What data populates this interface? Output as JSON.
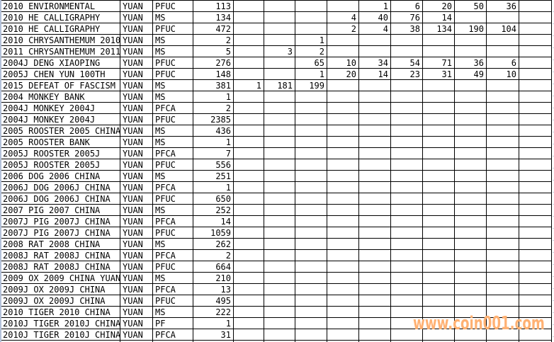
{
  "colors": {
    "grid_line": "#000000",
    "background": "#ffffff",
    "edge_strip": "#b4c2da",
    "faint_gridline": "#ccd5e4",
    "watermark": "#ffb173"
  },
  "watermark": {
    "text": "www.coin001.com"
  },
  "table": {
    "columns": [
      "name",
      "unit",
      "grade",
      "count",
      "c1",
      "c2",
      "c3",
      "c4",
      "c5",
      "c6",
      "c7",
      "c8",
      "c9",
      "c10"
    ],
    "rows": [
      {
        "name": "2010 ENVIRONMENTAL",
        "unit": "YUAN",
        "grade": "PFUC",
        "count": "113",
        "values": [
          "",
          "",
          "",
          "",
          "1",
          "6",
          "20",
          "50",
          "36",
          ""
        ]
      },
      {
        "name": "2010 HE CALLIGRAPHY",
        "unit": "YUAN",
        "grade": "MS",
        "count": "134",
        "values": [
          "",
          "",
          "",
          "4",
          "40",
          "76",
          "14",
          "",
          "",
          ""
        ]
      },
      {
        "name": "2010 HE CALLIGRAPHY",
        "unit": "YUAN",
        "grade": "PFUC",
        "count": "472",
        "values": [
          "",
          "",
          "",
          "2",
          "4",
          "38",
          "134",
          "190",
          "104",
          ""
        ]
      },
      {
        "name": "2010 CHRYSANTHEMUM 2010",
        "unit": "YUAN",
        "grade": "MS",
        "count": "2",
        "values": [
          "",
          "",
          "1",
          "",
          "",
          "",
          "",
          "",
          "",
          ""
        ]
      },
      {
        "name": "2011 CHRYSANTHEMUM 2011",
        "unit": "YUAN",
        "grade": "MS",
        "count": "5",
        "values": [
          "",
          "3",
          "2",
          "",
          "",
          "",
          "",
          "",
          "",
          ""
        ]
      },
      {
        "name": "2004J DENG XIAOPING",
        "unit": "YUAN",
        "grade": "PFUC",
        "count": "276",
        "values": [
          "",
          "",
          "65",
          "10",
          "34",
          "54",
          "71",
          "36",
          "6",
          ""
        ]
      },
      {
        "name": "2005J CHEN YUN 100TH",
        "unit": "YUAN",
        "grade": "PFUC",
        "count": "148",
        "values": [
          "",
          "",
          "1",
          "20",
          "14",
          "23",
          "31",
          "49",
          "10",
          ""
        ]
      },
      {
        "name": "2015 DEFEAT OF FASCISM",
        "unit": "YUAN",
        "grade": "MS",
        "count": "381",
        "values": [
          "1",
          "181",
          "199",
          "",
          "",
          "",
          "",
          "",
          "",
          ""
        ]
      },
      {
        "name": "2004 MONKEY BANK",
        "unit": "YUAN",
        "grade": "MS",
        "count": "1",
        "values": [
          "",
          "",
          "",
          "",
          "",
          "",
          "",
          "",
          "",
          ""
        ]
      },
      {
        "name": "2004J MONKEY 2004J",
        "unit": "YUAN",
        "grade": "PFCA",
        "count": "2",
        "values": [
          "",
          "",
          "",
          "",
          "",
          "",
          "",
          "",
          "",
          ""
        ]
      },
      {
        "name": "2004J MONKEY 2004J",
        "unit": "YUAN",
        "grade": "PFUC",
        "count": "2385",
        "values": [
          "",
          "",
          "",
          "",
          "",
          "",
          "",
          "",
          "",
          ""
        ]
      },
      {
        "name": "2005 ROOSTER 2005 CHINA",
        "unit": "YUAN",
        "grade": "MS",
        "count": "436",
        "values": [
          "",
          "",
          "",
          "",
          "",
          "",
          "",
          "",
          "",
          ""
        ]
      },
      {
        "name": "2005 ROOSTER BANK",
        "unit": "YUAN",
        "grade": "MS",
        "count": "1",
        "values": [
          "",
          "",
          "",
          "",
          "",
          "",
          "",
          "",
          "",
          ""
        ]
      },
      {
        "name": "2005J ROOSTER 2005J",
        "unit": "YUAN",
        "grade": "PFCA",
        "count": "7",
        "values": [
          "",
          "",
          "",
          "",
          "",
          "",
          "",
          "",
          "",
          ""
        ]
      },
      {
        "name": "2005J ROOSTER 2005J",
        "unit": "YUAN",
        "grade": "PFUC",
        "count": "556",
        "values": [
          "",
          "",
          "",
          "",
          "",
          "",
          "",
          "",
          "",
          ""
        ]
      },
      {
        "name": "2006 DOG 2006 CHINA",
        "unit": "YUAN",
        "grade": "MS",
        "count": "251",
        "values": [
          "",
          "",
          "",
          "",
          "",
          "",
          "",
          "",
          "",
          ""
        ]
      },
      {
        "name": "2006J DOG 2006J CHINA",
        "unit": "YUAN",
        "grade": "PFCA",
        "count": "1",
        "values": [
          "",
          "",
          "",
          "",
          "",
          "",
          "",
          "",
          "",
          ""
        ]
      },
      {
        "name": "2006J DOG 2006J CHINA",
        "unit": "YUAN",
        "grade": "PFUC",
        "count": "650",
        "values": [
          "",
          "",
          "",
          "",
          "",
          "",
          "",
          "",
          "",
          ""
        ]
      },
      {
        "name": "2007 PIG 2007 CHINA",
        "unit": "YUAN",
        "grade": "MS",
        "count": "252",
        "values": [
          "",
          "",
          "",
          "",
          "",
          "",
          "",
          "",
          "",
          ""
        ]
      },
      {
        "name": "2007J PIG 2007J CHINA",
        "unit": "YUAN",
        "grade": "PFCA",
        "count": "14",
        "values": [
          "",
          "",
          "",
          "",
          "",
          "",
          "",
          "",
          "",
          ""
        ]
      },
      {
        "name": "2007J PIG 2007J CHINA",
        "unit": "YUAN",
        "grade": "PFUC",
        "count": "1059",
        "values": [
          "",
          "",
          "",
          "",
          "",
          "",
          "",
          "",
          "",
          ""
        ]
      },
      {
        "name": "2008 RAT 2008 CHINA",
        "unit": "YUAN",
        "grade": "MS",
        "count": "262",
        "values": [
          "",
          "",
          "",
          "",
          "",
          "",
          "",
          "",
          "",
          ""
        ]
      },
      {
        "name": "2008J RAT 2008J CHINA",
        "unit": "YUAN",
        "grade": "PFCA",
        "count": "2",
        "values": [
          "",
          "",
          "",
          "",
          "",
          "",
          "",
          "",
          "",
          ""
        ]
      },
      {
        "name": "2008J RAT 2008J CHINA",
        "unit": "YUAN",
        "grade": "PFUC",
        "count": "664",
        "values": [
          "",
          "",
          "",
          "",
          "",
          "",
          "",
          "",
          "",
          ""
        ]
      },
      {
        "name": "2009 OX 2009 CHINA YUAN",
        "unit": "YUAN",
        "grade": "MS",
        "count": "210",
        "values": [
          "",
          "",
          "",
          "",
          "",
          "",
          "",
          "",
          "",
          ""
        ]
      },
      {
        "name": "2009J OX 2009J CHINA",
        "unit": "YUAN",
        "grade": "PFCA",
        "count": "13",
        "values": [
          "",
          "",
          "",
          "",
          "",
          "",
          "",
          "",
          "",
          ""
        ]
      },
      {
        "name": "2009J OX 2009J CHINA",
        "unit": "YUAN",
        "grade": "PFUC",
        "count": "495",
        "values": [
          "",
          "",
          "",
          "",
          "",
          "",
          "",
          "",
          "",
          ""
        ]
      },
      {
        "name": "2010 TIGER 2010 CHINA",
        "unit": "YUAN",
        "grade": "MS",
        "count": "222",
        "values": [
          "",
          "",
          "",
          "",
          "",
          "",
          "",
          "",
          "",
          ""
        ]
      },
      {
        "name": "2010J TIGER 2010J CHINA",
        "unit": "YUAN",
        "grade": "PF",
        "count": "1",
        "values": [
          "",
          "",
          "",
          "",
          "",
          "",
          "",
          "",
          "",
          ""
        ]
      },
      {
        "name": "2010J TIGER 2010J CHINA",
        "unit": "YUAN",
        "grade": "PFCA",
        "count": "31",
        "values": [
          "",
          "",
          "",
          "",
          "",
          "",
          "",
          "",
          "",
          ""
        ]
      }
    ]
  }
}
